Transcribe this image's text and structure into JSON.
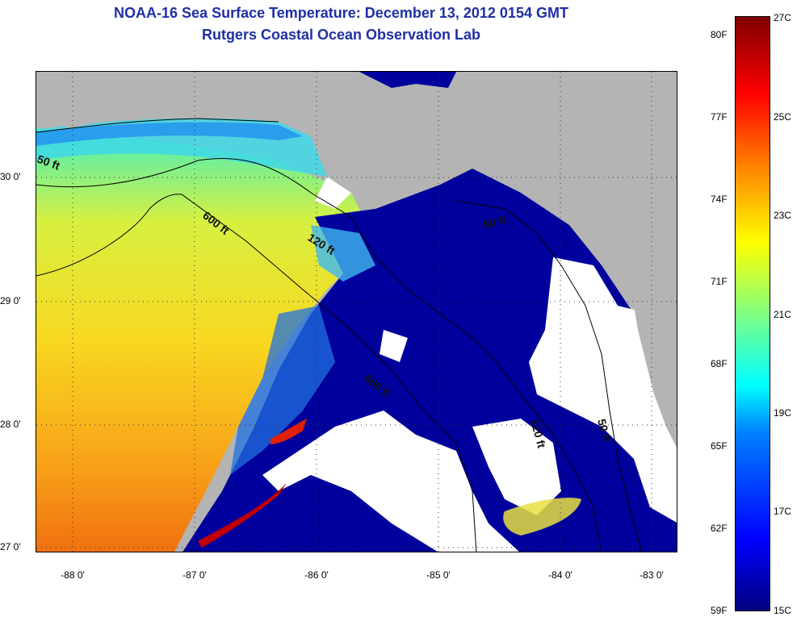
{
  "title": {
    "line1": "NOAA-16 Sea Surface Temperature:  December 13, 2012 0154 GMT",
    "line2": "Rutgers Coastal Ocean Observation Lab"
  },
  "map": {
    "lat_ticks": [
      "30 0'",
      "29 0'",
      "28 0'",
      "27 0'"
    ],
    "lon_ticks": [
      "-88 0'",
      "-87 0'",
      "-86 0'",
      "-85 0'",
      "-84 0'",
      "-83 0'"
    ],
    "contour_labels": [
      "50 ft",
      "600 ft",
      "120 ft",
      "50 ft",
      "600 ft",
      "120 ft",
      "50 ft"
    ],
    "colors": {
      "land": "#b4b4b4",
      "cloud": "#ffffff",
      "cold_water": "#00009c"
    }
  },
  "colorbar": {
    "fahrenheit": [
      "80F",
      "77F",
      "74F",
      "71F",
      "68F",
      "65F",
      "62F",
      "59F"
    ],
    "celsius": [
      "27C",
      "25C",
      "23C",
      "21C",
      "19C",
      "17C",
      "15C"
    ],
    "min_f": 59,
    "max_f": 80.6,
    "min_c": 15,
    "max_c": 27
  }
}
